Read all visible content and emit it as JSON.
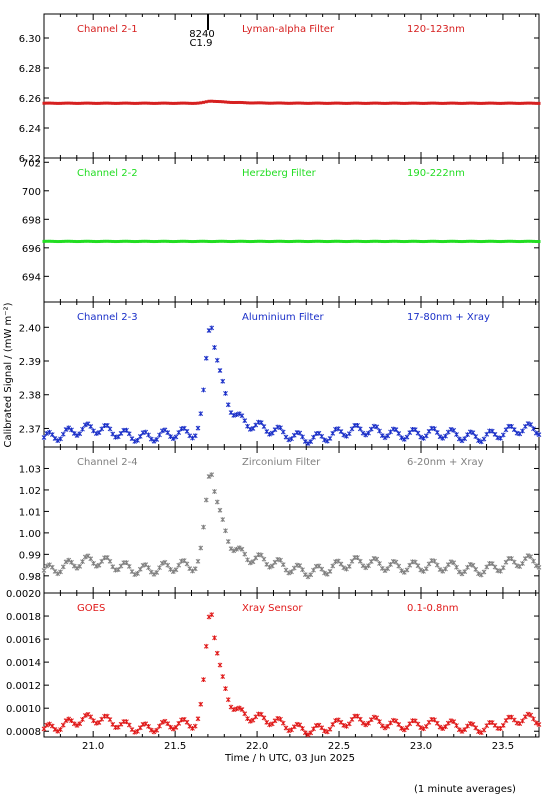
{
  "figure": {
    "xlabel": "Time / h UTC, 03 Jun 2025",
    "ylabel": "Calibrated Signal / (mW m⁻²)",
    "note": "(1 minute averages)",
    "flare": {
      "label_top": "8240",
      "label_bottom": "C1.9"
    }
  },
  "x_axis": {
    "range": [
      20.7,
      23.72
    ],
    "ticks": [
      21.0,
      21.5,
      22.0,
      22.5,
      23.0,
      23.5
    ],
    "tick_labels": [
      "21.0",
      "21.5",
      "22.0",
      "22.5",
      "23.0",
      "23.5"
    ]
  },
  "chart_data": [
    {
      "type": "scatter",
      "channel": "Channel 2-1",
      "filter": "Lyman-alpha Filter",
      "band": "120-123nm",
      "color": "#d62020",
      "marker": "dot",
      "ylim": [
        6.22,
        6.316
      ],
      "yticks": [
        6.22,
        6.24,
        6.26,
        6.28,
        6.3
      ],
      "ytick_labels": [
        "6.22",
        "6.24",
        "6.26",
        "6.28",
        "6.30"
      ],
      "profile": {
        "base": 6.2565,
        "peak": 0.0015,
        "decay": 0.14,
        "ripple": 0.0001,
        "wobble": 0.0
      }
    },
    {
      "type": "scatter",
      "channel": "Channel 2-2",
      "filter": "Herzberg Filter",
      "band": "190-222nm",
      "color": "#22dd22",
      "marker": "dot",
      "ylim": [
        692.2,
        702.3
      ],
      "yticks": [
        694,
        696,
        698,
        700,
        702
      ],
      "ytick_labels": [
        "694",
        "696",
        "698",
        "700",
        "702"
      ],
      "profile": {
        "base": 696.45,
        "peak": 0.0,
        "decay": 0.1,
        "ripple": 0.01,
        "wobble": 0.0
      }
    },
    {
      "type": "scatter",
      "channel": "Channel 2-3",
      "filter": "Aluminium Filter",
      "band": "17-80nm + Xray",
      "color": "#1a2fc8",
      "marker": "cross",
      "ylim": [
        2.3645,
        2.4075
      ],
      "yticks": [
        2.37,
        2.38,
        2.39,
        2.4
      ],
      "ytick_labels": [
        "2.37",
        "2.38",
        "2.39",
        "2.40"
      ],
      "profile": {
        "base": 2.3685,
        "peak": 0.0345,
        "decay": 0.08,
        "ripple": 0.0015,
        "wobble": 0.0015
      }
    },
    {
      "type": "scatter",
      "channel": "Channel 2-4",
      "filter": "Zirconium Filter",
      "band": "6-20nm + Xray",
      "color": "#808080",
      "marker": "cross",
      "ylim": [
        0.972,
        1.04
      ],
      "yticks": [
        0.98,
        0.99,
        1.0,
        1.01,
        1.02,
        1.03
      ],
      "ytick_labels": [
        "0.98",
        "0.99",
        "1.00",
        "1.01",
        "1.02",
        "1.03"
      ],
      "profile": {
        "base": 0.9845,
        "peak": 0.0475,
        "decay": 0.08,
        "ripple": 0.0025,
        "wobble": 0.0025
      }
    },
    {
      "type": "scatter",
      "channel": "GOES",
      "filter": "Xray Sensor",
      "band": "0.1-0.8nm",
      "color": "#e01818",
      "marker": "cross",
      "ylim": [
        0.00075,
        0.002
      ],
      "yticks": [
        0.0008,
        0.001,
        0.0012,
        0.0014,
        0.0016,
        0.0018,
        0.002
      ],
      "ytick_labels": [
        "0.0008",
        "0.0010",
        "0.0012",
        "0.0014",
        "0.0016",
        "0.0018",
        "0.0020"
      ],
      "profile": {
        "base": 0.00086,
        "peak": 0.00105,
        "decay": 0.07,
        "ripple": 4e-05,
        "wobble": 5e-05
      }
    }
  ]
}
